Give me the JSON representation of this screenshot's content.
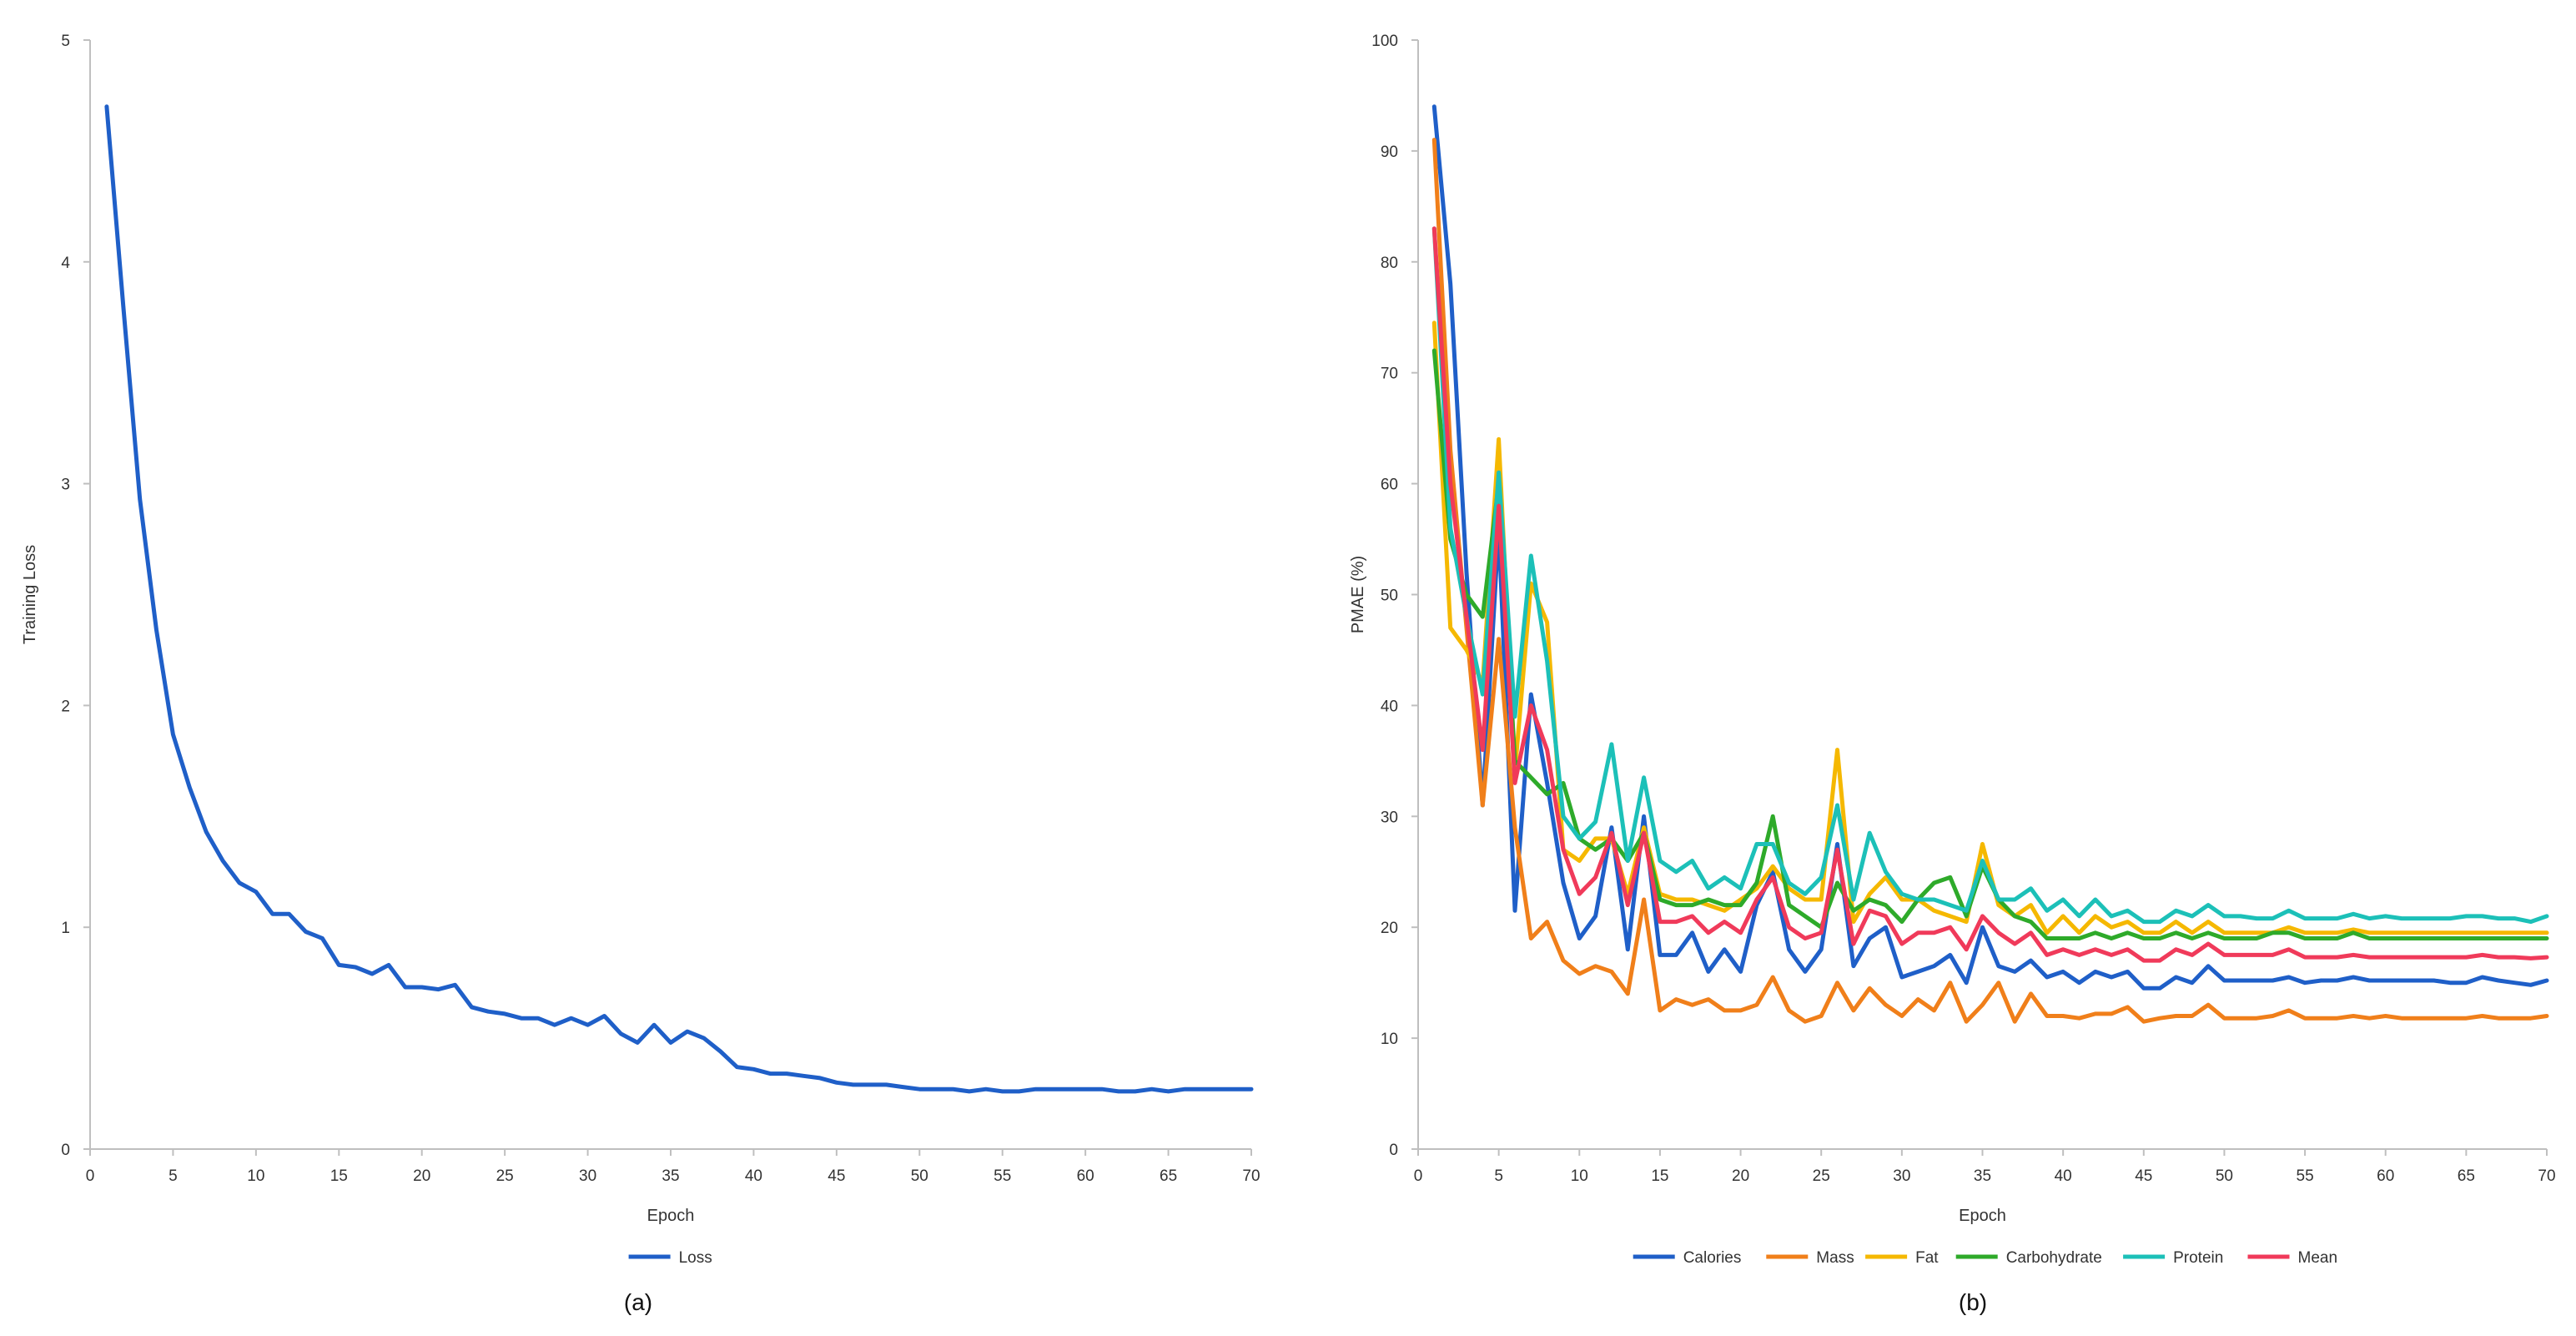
{
  "chart_data": [
    {
      "type": "line",
      "caption": "(a)",
      "xlabel": "Epoch",
      "ylabel": "Training Loss",
      "xlim": [
        0,
        70
      ],
      "ylim": [
        0,
        5
      ],
      "xticks": [
        0,
        5,
        10,
        15,
        20,
        25,
        30,
        35,
        40,
        45,
        50,
        55,
        60,
        65,
        70
      ],
      "yticks": [
        0,
        1,
        2,
        3,
        4,
        5
      ],
      "grid": false,
      "legend_position": "bottom",
      "x": [
        1,
        2,
        3,
        4,
        5,
        6,
        7,
        8,
        9,
        10,
        11,
        12,
        13,
        14,
        15,
        16,
        17,
        18,
        19,
        20,
        21,
        22,
        23,
        24,
        25,
        26,
        27,
        28,
        29,
        30,
        31,
        32,
        33,
        34,
        35,
        36,
        37,
        38,
        39,
        40,
        41,
        42,
        43,
        44,
        45,
        46,
        47,
        48,
        49,
        50,
        51,
        52,
        53,
        54,
        55,
        56,
        57,
        58,
        59,
        60,
        61,
        62,
        63,
        64,
        65,
        66,
        67,
        68,
        69,
        70
      ],
      "series": [
        {
          "name": "Loss",
          "color": "#1f5fc8",
          "values": [
            4.7,
            3.8,
            2.93,
            2.34,
            1.87,
            1.63,
            1.43,
            1.3,
            1.2,
            1.16,
            1.06,
            1.06,
            0.98,
            0.95,
            0.83,
            0.82,
            0.79,
            0.83,
            0.73,
            0.73,
            0.72,
            0.74,
            0.64,
            0.62,
            0.61,
            0.59,
            0.59,
            0.56,
            0.59,
            0.56,
            0.6,
            0.52,
            0.48,
            0.56,
            0.48,
            0.53,
            0.5,
            0.44,
            0.37,
            0.36,
            0.34,
            0.34,
            0.33,
            0.32,
            0.3,
            0.29,
            0.29,
            0.29,
            0.28,
            0.27,
            0.27,
            0.27,
            0.26,
            0.27,
            0.26,
            0.26,
            0.27,
            0.27,
            0.27,
            0.27,
            0.27,
            0.26,
            0.26,
            0.27,
            0.26,
            0.27,
            0.27,
            0.27,
            0.27,
            0.27
          ]
        }
      ]
    },
    {
      "type": "line",
      "caption": "(b)",
      "xlabel": "Epoch",
      "ylabel": "PMAE (%)",
      "xlim": [
        0,
        70
      ],
      "ylim": [
        0,
        100
      ],
      "xticks": [
        0,
        5,
        10,
        15,
        20,
        25,
        30,
        35,
        40,
        45,
        50,
        55,
        60,
        65,
        70
      ],
      "yticks": [
        0,
        10,
        20,
        30,
        40,
        50,
        60,
        70,
        80,
        90,
        100
      ],
      "grid": false,
      "legend_position": "bottom",
      "x": [
        1,
        2,
        3,
        4,
        5,
        6,
        7,
        8,
        9,
        10,
        11,
        12,
        13,
        14,
        15,
        16,
        17,
        18,
        19,
        20,
        21,
        22,
        23,
        24,
        25,
        26,
        27,
        28,
        29,
        30,
        31,
        32,
        33,
        34,
        35,
        36,
        37,
        38,
        39,
        40,
        41,
        42,
        43,
        44,
        45,
        46,
        47,
        48,
        49,
        50,
        51,
        52,
        53,
        54,
        55,
        56,
        57,
        58,
        59,
        60,
        61,
        62,
        63,
        64,
        65,
        66,
        67,
        68,
        69,
        70
      ],
      "series": [
        {
          "name": "Calories",
          "color": "#1f5fc8",
          "values": [
            94,
            78,
            52,
            31,
            56,
            21.5,
            41,
            33,
            24,
            19,
            21,
            29,
            18,
            30,
            17.5,
            17.5,
            19.5,
            16,
            18,
            16,
            22,
            25,
            18,
            16,
            18,
            27.5,
            16.5,
            19,
            20,
            15.5,
            16,
            16.5,
            17.5,
            15,
            20,
            16.5,
            16,
            17,
            15.5,
            16,
            15,
            16,
            15.5,
            16,
            14.5,
            14.5,
            15.5,
            15,
            16.5,
            15.2,
            15.2,
            15.2,
            15.2,
            15.5,
            15,
            15.2,
            15.2,
            15.5,
            15.2,
            15.2,
            15.2,
            15.2,
            15.2,
            15,
            15,
            15.5,
            15.2,
            15,
            14.8,
            15.2
          ]
        },
        {
          "name": "Mass",
          "color": "#f07f1a",
          "values": [
            91,
            63,
            47,
            31,
            46,
            29,
            19,
            20.5,
            17,
            15.8,
            16.5,
            16,
            14,
            22.5,
            12.5,
            13.5,
            13,
            13.5,
            12.5,
            12.5,
            13,
            15.5,
            12.5,
            11.5,
            12,
            15,
            12.5,
            14.5,
            13,
            12,
            13.5,
            12.5,
            15,
            11.5,
            13,
            15,
            11.5,
            14,
            12,
            12,
            11.8,
            12.2,
            12.2,
            12.8,
            11.5,
            11.8,
            12,
            12,
            13,
            11.8,
            11.8,
            11.8,
            12,
            12.5,
            11.8,
            11.8,
            11.8,
            12,
            11.8,
            12,
            11.8,
            11.8,
            11.8,
            11.8,
            11.8,
            12,
            11.8,
            11.8,
            11.8,
            12
          ]
        },
        {
          "name": "Fat",
          "color": "#f5b800",
          "values": [
            74.5,
            47,
            45,
            42,
            64,
            34,
            51,
            47.5,
            27,
            26,
            28,
            28,
            23,
            29,
            23,
            22.5,
            22.5,
            22,
            21.5,
            22.5,
            23.5,
            25.5,
            23.5,
            22.5,
            22.5,
            36,
            20.5,
            23,
            24.5,
            22.5,
            22.5,
            21.5,
            21,
            20.5,
            27.5,
            22,
            21,
            22,
            19.5,
            21,
            19.5,
            21,
            20,
            20.5,
            19.5,
            19.5,
            20.5,
            19.5,
            20.5,
            19.5,
            19.5,
            19.5,
            19.5,
            20,
            19.5,
            19.5,
            19.5,
            19.8,
            19.5,
            19.5,
            19.5,
            19.5,
            19.5,
            19.5,
            19.5,
            19.5,
            19.5,
            19.5,
            19.5,
            19.5
          ]
        },
        {
          "name": "Carbohydrate",
          "color": "#2eaa2a",
          "values": [
            72,
            55,
            50,
            48,
            60,
            35,
            33.5,
            32,
            33,
            28,
            27,
            28,
            26,
            28.5,
            22.5,
            22,
            22,
            22.5,
            22,
            22,
            24,
            30,
            22,
            21,
            20,
            24,
            21.5,
            22.5,
            22,
            20.5,
            22.5,
            24,
            24.5,
            21,
            25.5,
            22.5,
            21,
            20.5,
            19,
            19,
            19,
            19.5,
            19,
            19.5,
            19,
            19,
            19.5,
            19,
            19.5,
            19,
            19,
            19,
            19.5,
            19.5,
            19,
            19,
            19,
            19.5,
            19,
            19,
            19,
            19,
            19,
            19,
            19,
            19,
            19,
            19,
            19,
            19
          ]
        },
        {
          "name": "Protein",
          "color": "#1cc0b8",
          "values": [
            83,
            56,
            48,
            41,
            61,
            39,
            53.5,
            44,
            30,
            28,
            29.5,
            36.5,
            26,
            33.5,
            26,
            25,
            26,
            23.5,
            24.5,
            23.5,
            27.5,
            27.5,
            24,
            23,
            24.5,
            31,
            22.5,
            28.5,
            25,
            23,
            22.5,
            22.5,
            22,
            21.5,
            26,
            22.5,
            22.5,
            23.5,
            21.5,
            22.5,
            21,
            22.5,
            21,
            21.5,
            20.5,
            20.5,
            21.5,
            21,
            22,
            21,
            21,
            20.8,
            20.8,
            21.5,
            20.8,
            20.8,
            20.8,
            21.2,
            20.8,
            21,
            20.8,
            20.8,
            20.8,
            20.8,
            21,
            21,
            20.8,
            20.8,
            20.5,
            21
          ]
        },
        {
          "name": "Mean",
          "color": "#f03a5a",
          "values": [
            83,
            60,
            48,
            36,
            58,
            33,
            40,
            36,
            27,
            23,
            24.5,
            28.5,
            22,
            28.5,
            20.5,
            20.5,
            21,
            19.5,
            20.5,
            19.5,
            22.5,
            24.5,
            20,
            19,
            19.5,
            27,
            18.5,
            21.5,
            21,
            18.5,
            19.5,
            19.5,
            20,
            18,
            21,
            19.5,
            18.5,
            19.5,
            17.5,
            18,
            17.5,
            18,
            17.5,
            18,
            17,
            17,
            18,
            17.5,
            18.5,
            17.5,
            17.5,
            17.5,
            17.5,
            18,
            17.3,
            17.3,
            17.3,
            17.5,
            17.3,
            17.3,
            17.3,
            17.3,
            17.3,
            17.3,
            17.3,
            17.5,
            17.3,
            17.3,
            17.2,
            17.3
          ]
        }
      ]
    }
  ]
}
